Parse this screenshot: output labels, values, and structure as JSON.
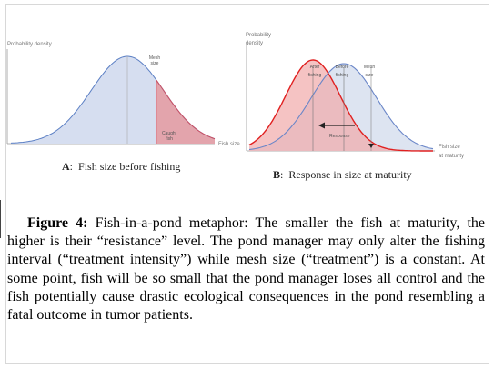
{
  "figure": {
    "panel_a": {
      "letter": "A",
      "caption": "Fish size before fishing",
      "ylabel": "Probability density",
      "xlabel": "Fish size",
      "mesh_size_label": "Mesh\nsize",
      "caught_fish_label": "Caught\nfish",
      "mesh_size_fraction": 0.32,
      "colors": {
        "curve": "#5b7fc4",
        "fill": "#d6def0",
        "caught_line": "#d05060",
        "caught_fill": "#e3a4ac"
      }
    },
    "panel_b": {
      "letter": "B",
      "caption": "Response in size at maturity",
      "ylabel": "Probability\ndensity",
      "xlabel": "Fish size\nat maturity",
      "after_label": "After\nfishing",
      "before_label": "Before\nfishing",
      "mesh_label": "Mesh\nsize",
      "response_label": "Response",
      "colors": {
        "before_curve": "#6a86c8",
        "before_fill": "#d9e1f0",
        "after_curve": "#e02020",
        "after_fill": "#f1a9aa"
      }
    }
  },
  "caption": {
    "label": "Figure 4:",
    "text": " Fish-in-a-pond metaphor: The smaller the  fish  at maturity, the higher is their “resistance” level. The pond manager may only alter the fishing interval (“treatment intensity”) while mesh size (“treatment”) is a constant. At some point, fish will be so small that the pond manager loses all control and the fish potentially  cause drastic ecological consequences in the pond resembling a fatal outcome in tumor patients."
  }
}
